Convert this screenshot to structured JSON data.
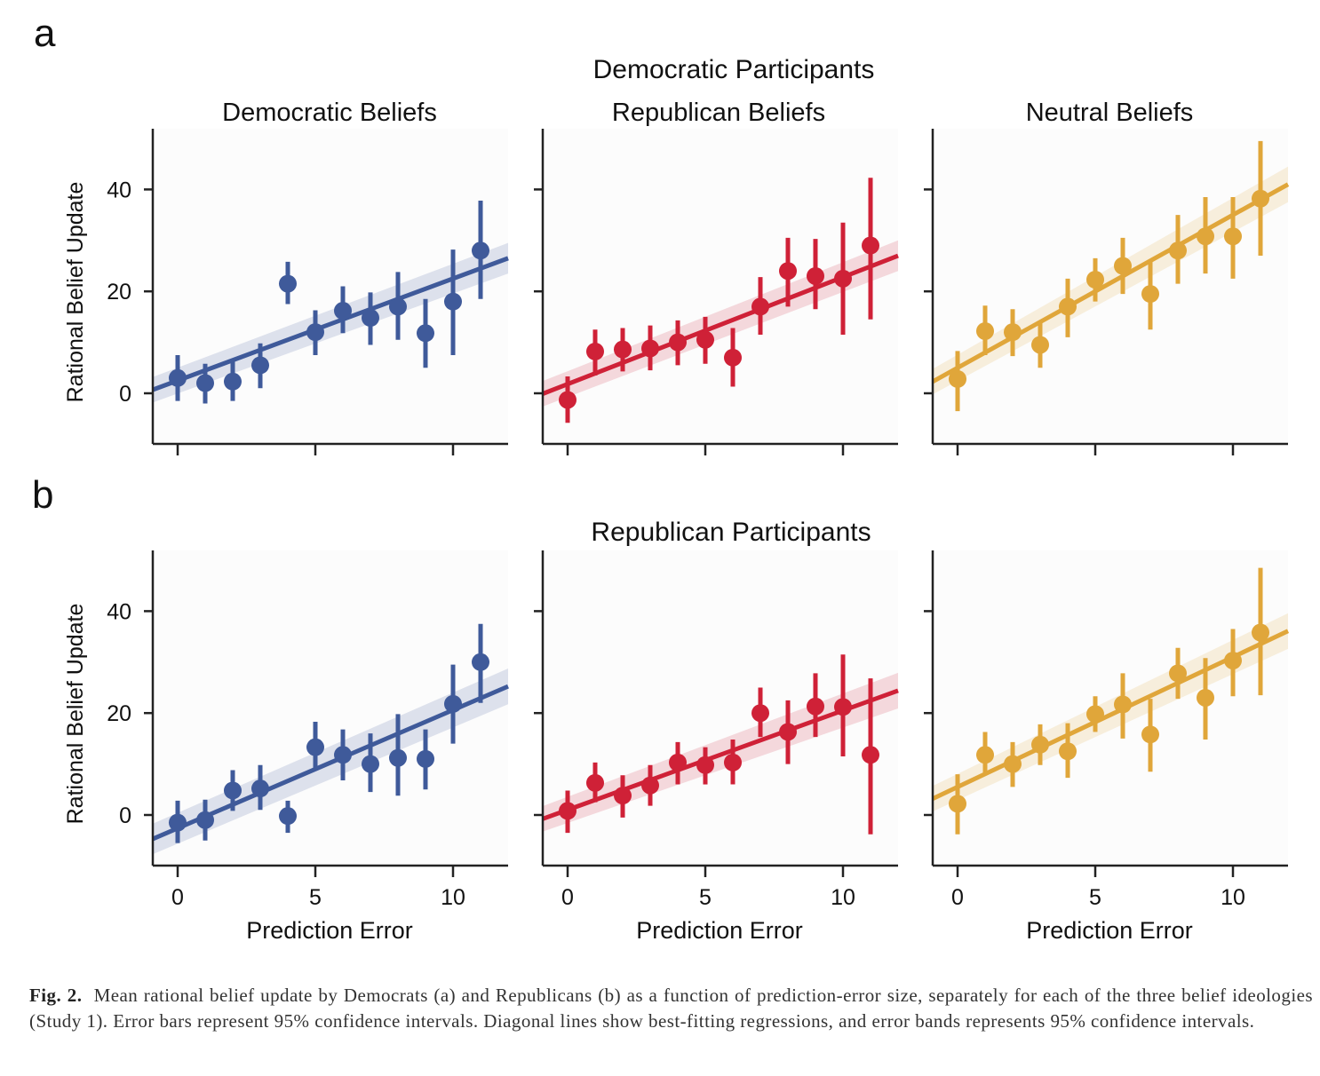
{
  "panel_labels": [
    "a",
    "b"
  ],
  "colors": {
    "democratic": "#3f5a9a",
    "republican": "#cf2137",
    "neutral": "#e0a63a",
    "axis": "#222222",
    "panel_bg": "#fcfcfc"
  },
  "chart_data": [
    {
      "type": "scatter",
      "group_title": "Democratic Participants",
      "panels": [
        {
          "title": "Democratic Beliefs",
          "color_key": "democratic",
          "x": [
            0,
            1,
            2,
            3,
            4,
            5,
            6,
            7,
            8,
            9,
            10,
            11
          ],
          "y": [
            3,
            2,
            2.3,
            5.5,
            21.5,
            12,
            16.2,
            14.8,
            17,
            11.8,
            18,
            28
          ],
          "ci_low": [
            -1.5,
            -2,
            -1.5,
            1,
            17.5,
            7.5,
            11.8,
            9.5,
            10.5,
            5,
            7.5,
            18.5
          ],
          "ci_high": [
            7.5,
            5.8,
            6.3,
            9.8,
            25.8,
            16.3,
            21,
            19.8,
            23.8,
            18.5,
            28.2,
            37.8
          ],
          "fit": {
            "slope": 2.0,
            "intercept": 2.5
          },
          "band": {
            "at_min": 2.5,
            "at_max": 3
          }
        },
        {
          "title": "Republican Beliefs",
          "color_key": "republican",
          "x": [
            0,
            1,
            2,
            3,
            4,
            5,
            6,
            7,
            8,
            9,
            10,
            11
          ],
          "y": [
            -1.3,
            8.2,
            8.6,
            8.8,
            10,
            10.5,
            7,
            17,
            24,
            23,
            22.5,
            29
          ],
          "ci_low": [
            -5.8,
            3.5,
            4.3,
            4.5,
            5.5,
            5.8,
            1.3,
            11.5,
            17,
            16.5,
            11.5,
            14.5
          ],
          "ci_high": [
            3.3,
            12.5,
            12.8,
            13.3,
            14.3,
            15,
            12.8,
            22.8,
            30.5,
            30.3,
            33.5,
            42.3
          ],
          "fit": {
            "slope": 2.1,
            "intercept": 1.8
          },
          "band": {
            "at_min": 2.5,
            "at_max": 3
          }
        },
        {
          "title": "Neutral Beliefs",
          "color_key": "neutral",
          "x": [
            0,
            1,
            2,
            3,
            4,
            5,
            6,
            7,
            8,
            9,
            10,
            11
          ],
          "y": [
            2.8,
            12.2,
            12,
            9.5,
            17,
            22.3,
            25,
            19.5,
            28,
            30.8,
            30.8,
            38.2
          ],
          "ci_low": [
            -3.5,
            7.5,
            7.3,
            5,
            11,
            18,
            19.5,
            12.5,
            21.5,
            23.5,
            22.5,
            27
          ],
          "ci_high": [
            8.3,
            17.2,
            16.5,
            13.8,
            22.5,
            26.5,
            30.5,
            26,
            35,
            38.5,
            38.5,
            49.5
          ],
          "fit": {
            "slope": 3.0,
            "intercept": 5.0
          },
          "band": {
            "at_min": 2.5,
            "at_max": 3.5
          }
        }
      ]
    },
    {
      "type": "scatter",
      "group_title": "Republican Participants",
      "panels": [
        {
          "title": "",
          "color_key": "democratic",
          "x": [
            0,
            1,
            2,
            3,
            4,
            5,
            6,
            7,
            8,
            9,
            10,
            11
          ],
          "y": [
            -1.5,
            -1,
            4.8,
            5.2,
            -0.2,
            13.3,
            11.8,
            10,
            11.2,
            11,
            21.8,
            30
          ],
          "ci_low": [
            -5.5,
            -5,
            0.8,
            1,
            -3.5,
            8.8,
            6.8,
            4.5,
            3.8,
            5,
            14,
            22
          ],
          "ci_high": [
            2.8,
            3,
            8.8,
            9.8,
            2.8,
            18.3,
            16.8,
            16,
            19.8,
            16.8,
            29.5,
            37.5
          ],
          "fit": {
            "slope": 2.32,
            "intercept": -2.6
          },
          "band": {
            "at_min": 3,
            "at_max": 3.5
          }
        },
        {
          "title": "",
          "color_key": "republican",
          "x": [
            0,
            1,
            2,
            3,
            4,
            5,
            6,
            7,
            8,
            9,
            10,
            11
          ],
          "y": [
            0.8,
            6.3,
            3.8,
            5.8,
            10.3,
            9.8,
            10.3,
            20,
            16.3,
            21.3,
            21.2,
            11.8
          ],
          "ci_low": [
            -3.5,
            2.5,
            -0.5,
            1.8,
            6,
            6,
            6,
            15.3,
            10,
            15.3,
            11.5,
            -3.8
          ],
          "ci_high": [
            4.8,
            10.3,
            7.8,
            9.8,
            14.3,
            13.3,
            14.8,
            25,
            22.5,
            27.8,
            31.5,
            26.8
          ],
          "fit": {
            "slope": 1.95,
            "intercept": 1.0
          },
          "band": {
            "at_min": 2.5,
            "at_max": 3.5
          }
        },
        {
          "title": "",
          "color_key": "neutral",
          "x": [
            0,
            1,
            2,
            3,
            4,
            5,
            6,
            7,
            8,
            9,
            10,
            11
          ],
          "y": [
            2.2,
            11.8,
            10,
            13.8,
            12.5,
            19.8,
            21.7,
            15.8,
            27.8,
            23,
            30.3,
            35.8
          ],
          "ci_low": [
            -3.8,
            7.8,
            5.5,
            9.8,
            7.3,
            16.3,
            15,
            8.5,
            22.8,
            14.8,
            23.3,
            23.5
          ],
          "ci_high": [
            8,
            16.3,
            14.3,
            17.8,
            18,
            23.3,
            27.8,
            22.8,
            32.8,
            30.8,
            36.5,
            48.5
          ],
          "fit": {
            "slope": 2.55,
            "intercept": 5.5
          },
          "band": {
            "at_min": 2.5,
            "at_max": 3.5
          }
        }
      ]
    }
  ],
  "axes": {
    "ylabel": "Rational Belief Update",
    "xlabel": "Prediction Error",
    "yticks": [
      0,
      20,
      40
    ],
    "ytick_labels": [
      "0",
      "20",
      "40"
    ],
    "xticks": [
      0,
      5,
      10
    ],
    "xtick_labels": [
      "0",
      "5",
      "10"
    ],
    "xlim": [
      -0.9,
      12.0
    ],
    "ylim": [
      -10,
      52
    ]
  },
  "caption": {
    "label": "Fig. 2.",
    "text": "Mean rational belief update by Democrats (a) and Republicans (b) as a function of prediction-error size, separately for each of the three belief ideologies (Study 1). Error bars represent 95% confidence intervals. Diagonal lines show best-fitting regressions, and error bands represents 95% confidence intervals."
  }
}
